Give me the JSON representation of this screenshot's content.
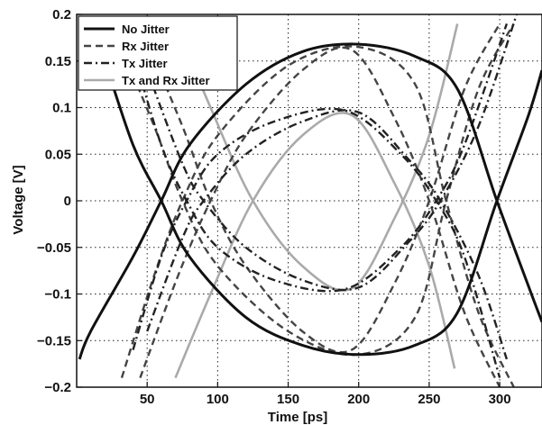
{
  "chart_data": {
    "type": "line",
    "title": "",
    "xlabel": "Time [ps]",
    "ylabel": "Voltage [V]",
    "xlim": [
      0,
      330
    ],
    "ylim": [
      -0.2,
      0.2
    ],
    "x_ticks": [
      50,
      100,
      150,
      200,
      250,
      300
    ],
    "x_tick_labels": [
      "50",
      "100",
      "150",
      "200",
      "250",
      "300"
    ],
    "y_ticks": [
      -0.2,
      -0.15,
      -0.1,
      -0.05,
      0,
      0.05,
      0.1,
      0.15,
      0.2
    ],
    "y_tick_labels": [
      "−0.2",
      "−0.15",
      "−0.1",
      "−0.05",
      "0",
      "0.05",
      "0.1",
      "0.15",
      "0.2"
    ],
    "grid": true,
    "legend_position": "top-left",
    "series": [
      {
        "name": "No Jitter",
        "style": "solid",
        "color": "#111111",
        "curves": [
          [
            [
              18,
              0.16
            ],
            [
              40,
              0.06
            ],
            [
              60,
              0.0
            ],
            [
              80,
              -0.06
            ],
            [
              120,
              -0.125
            ],
            [
              160,
              -0.155
            ],
            [
              200,
              -0.165
            ],
            [
              240,
              -0.155
            ],
            [
              270,
              -0.12
            ],
            [
              298,
              0.0
            ],
            [
              320,
              0.09
            ],
            [
              330,
              0.14
            ]
          ],
          [
            [
              2,
              -0.17
            ],
            [
              10,
              -0.14
            ],
            [
              40,
              -0.06
            ],
            [
              60,
              0.0
            ],
            [
              80,
              0.06
            ],
            [
              120,
              0.125
            ],
            [
              160,
              0.16
            ],
            [
              200,
              0.168
            ],
            [
              240,
              0.155
            ],
            [
              270,
              0.12
            ],
            [
              298,
              0.0
            ],
            [
              320,
              -0.09
            ],
            [
              330,
              -0.13
            ]
          ]
        ]
      },
      {
        "name": "Rx Jitter",
        "style": "dashed",
        "color": "#444444",
        "curves": [
          [
            [
              30,
              0.17
            ],
            [
              55,
              0.08
            ],
            [
              75,
              0.0
            ],
            [
              100,
              -0.07
            ],
            [
              150,
              -0.14
            ],
            [
              200,
              -0.165
            ],
            [
              240,
              -0.125
            ],
            [
              262,
              0.0
            ],
            [
              285,
              0.12
            ],
            [
              310,
              0.19
            ]
          ],
          [
            [
              32,
              -0.19
            ],
            [
              55,
              -0.08
            ],
            [
              75,
              0.0
            ],
            [
              100,
              0.07
            ],
            [
              150,
              0.145
            ],
            [
              200,
              0.165
            ],
            [
              240,
              0.125
            ],
            [
              262,
              0.0
            ],
            [
              285,
              -0.12
            ],
            [
              310,
              -0.2
            ]
          ],
          [
            [
              50,
              0.17
            ],
            [
              75,
              0.08
            ],
            [
              95,
              0.0
            ],
            [
              120,
              -0.07
            ],
            [
              160,
              -0.14
            ],
            [
              195,
              -0.16
            ],
            [
              225,
              -0.09
            ],
            [
              250,
              0.0
            ],
            [
              275,
              0.12
            ],
            [
              300,
              0.19
            ]
          ],
          [
            [
              45,
              -0.19
            ],
            [
              72,
              -0.08
            ],
            [
              95,
              0.0
            ],
            [
              120,
              0.07
            ],
            [
              160,
              0.14
            ],
            [
              195,
              0.162
            ],
            [
              225,
              0.09
            ],
            [
              250,
              0.0
            ],
            [
              275,
              -0.12
            ],
            [
              300,
              -0.2
            ]
          ]
        ]
      },
      {
        "name": "Tx Jitter",
        "style": "dashdot",
        "color": "#222222",
        "curves": [
          [
            [
              40,
              -0.16
            ],
            [
              60,
              -0.06
            ],
            [
              78,
              0.0
            ],
            [
              100,
              0.05
            ],
            [
              140,
              0.085
            ],
            [
              190,
              0.097
            ],
            [
              230,
              0.05
            ],
            [
              255,
              0.0
            ],
            [
              275,
              -0.06
            ],
            [
              300,
              -0.19
            ]
          ],
          [
            [
              40,
              0.16
            ],
            [
              60,
              0.06
            ],
            [
              78,
              0.0
            ],
            [
              100,
              -0.05
            ],
            [
              140,
              -0.085
            ],
            [
              190,
              -0.095
            ],
            [
              230,
              -0.05
            ],
            [
              255,
              0.0
            ],
            [
              275,
              0.06
            ],
            [
              305,
              0.19
            ]
          ],
          [
            [
              50,
              -0.14
            ],
            [
              75,
              -0.04
            ],
            [
              90,
              0.0
            ],
            [
              120,
              0.05
            ],
            [
              160,
              0.085
            ],
            [
              200,
              0.095
            ],
            [
              235,
              0.045
            ],
            [
              258,
              0.0
            ],
            [
              285,
              -0.08
            ],
            [
              305,
              -0.17
            ]
          ],
          [
            [
              50,
              0.14
            ],
            [
              75,
              0.04
            ],
            [
              90,
              0.0
            ],
            [
              120,
              -0.05
            ],
            [
              160,
              -0.085
            ],
            [
              200,
              -0.093
            ],
            [
              235,
              -0.045
            ],
            [
              258,
              0.0
            ],
            [
              285,
              0.08
            ],
            [
              312,
              0.2
            ]
          ]
        ]
      },
      {
        "name": "Tx and Rx Jitter",
        "style": "solid",
        "color": "#aaaaaa",
        "curves": [
          [
            [
              70,
              0.19
            ],
            [
              95,
              0.1
            ],
            [
              125,
              0.0
            ],
            [
              160,
              -0.07
            ],
            [
              195,
              -0.094
            ],
            [
              225,
              -0.02
            ],
            [
              250,
              0.07
            ],
            [
              270,
              0.19
            ]
          ],
          [
            [
              70,
              -0.19
            ],
            [
              95,
              -0.1
            ],
            [
              125,
              0.0
            ],
            [
              160,
              0.07
            ],
            [
              195,
              0.092
            ],
            [
              225,
              0.02
            ],
            [
              250,
              -0.07
            ],
            [
              268,
              -0.18
            ]
          ]
        ]
      }
    ]
  }
}
